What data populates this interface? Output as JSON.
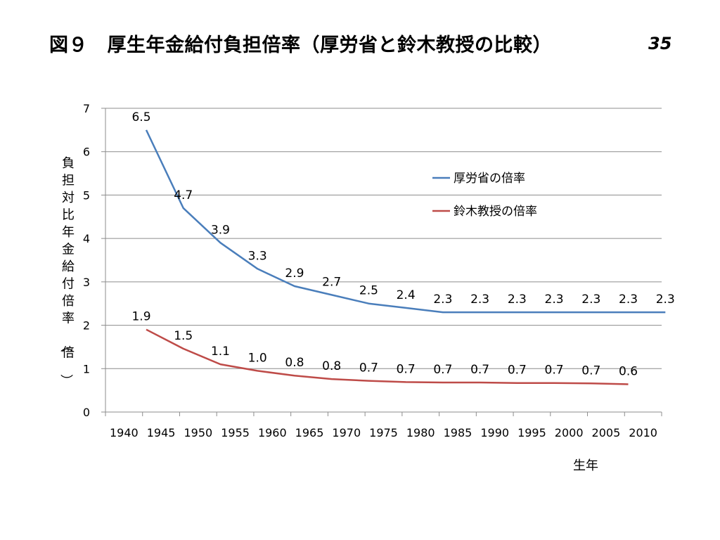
{
  "slide": {
    "title": "図９　厚生年金給付負担倍率（厚労省と鈴木教授の比較）",
    "page_number": "35"
  },
  "chart_data": {
    "type": "line",
    "title": "",
    "xlabel": "生年",
    "ylabel": "負担対比年金給付倍率（倍）",
    "categories": [
      "1940",
      "1945",
      "1950",
      "1955",
      "1960",
      "1965",
      "1970",
      "1975",
      "1980",
      "1985",
      "1990",
      "1995",
      "2000",
      "2005",
      "2010"
    ],
    "ylim": [
      0,
      7
    ],
    "yticks": [
      0,
      1,
      2,
      3,
      4,
      5,
      6,
      7
    ],
    "grid": true,
    "legend_position": "upper-right",
    "series": [
      {
        "name": "厚労省の倍率",
        "color": "#4a7ebb",
        "x": [
          "1943",
          "1948",
          "1953",
          "1958",
          "1963",
          "1968",
          "1973",
          "1978",
          "1983",
          "1988",
          "1993",
          "1998",
          "2003",
          "2008",
          "2013"
        ],
        "values": [
          6.5,
          4.7,
          3.9,
          3.3,
          2.9,
          2.7,
          2.5,
          2.4,
          2.3,
          2.3,
          2.3,
          2.3,
          2.3,
          2.3,
          2.3
        ],
        "labels": [
          "6.5",
          "4.7",
          "3.9",
          "3.3",
          "2.9",
          "2.7",
          "2.5",
          "2.4",
          "2.3",
          "2.3",
          "2.3",
          "2.3",
          "2.3",
          "2.3",
          "2.3"
        ]
      },
      {
        "name": "鈴木教授の倍率",
        "color": "#be4b48",
        "x": [
          "1943",
          "1948",
          "1953",
          "1958",
          "1963",
          "1968",
          "1973",
          "1978",
          "1983",
          "1988",
          "1993",
          "1998",
          "2003",
          "2008"
        ],
        "values": [
          1.9,
          1.46,
          1.1,
          0.95,
          0.84,
          0.76,
          0.72,
          0.69,
          0.68,
          0.68,
          0.67,
          0.67,
          0.66,
          0.64
        ],
        "labels": [
          "1.9",
          "1.5",
          "1.1",
          "1.0",
          "0.8",
          "0.8",
          "0.7",
          "0.7",
          "0.7",
          "0.7",
          "0.7",
          "0.7",
          "0.7",
          "0.6"
        ]
      }
    ]
  }
}
